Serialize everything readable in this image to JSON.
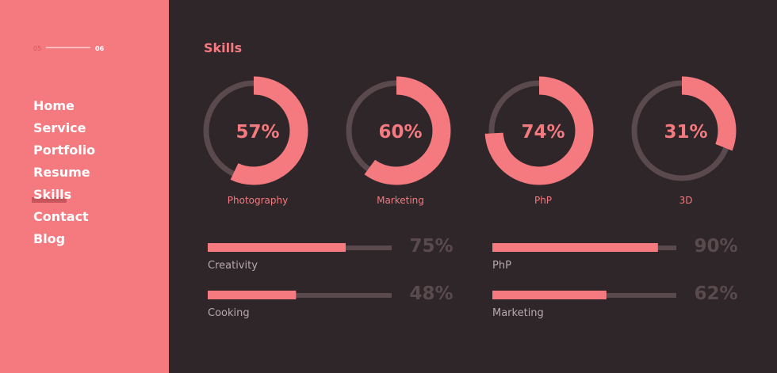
{
  "sidebar": {
    "pager": {
      "current": "05",
      "total": "06"
    },
    "nav": [
      "Home",
      "Service",
      "Portfolio",
      "Resume",
      "Skills",
      "Contact",
      "Blog"
    ],
    "active": 4
  },
  "skills": {
    "title": "Skills",
    "donuts": {
      "names": [
        "Photography",
        "Marketing",
        "PhP",
        "3D"
      ],
      "values": [
        57,
        60,
        74,
        31
      ],
      "value_labels": [
        "57%",
        "60%",
        "74%",
        "31%"
      ]
    },
    "bars": {
      "names": [
        "Creativity",
        "PhP",
        "Cooking",
        "Marketing"
      ],
      "values": [
        75,
        90,
        48,
        62
      ],
      "value_labels": [
        "75%",
        "90%",
        "48%",
        "62%"
      ]
    }
  }
}
